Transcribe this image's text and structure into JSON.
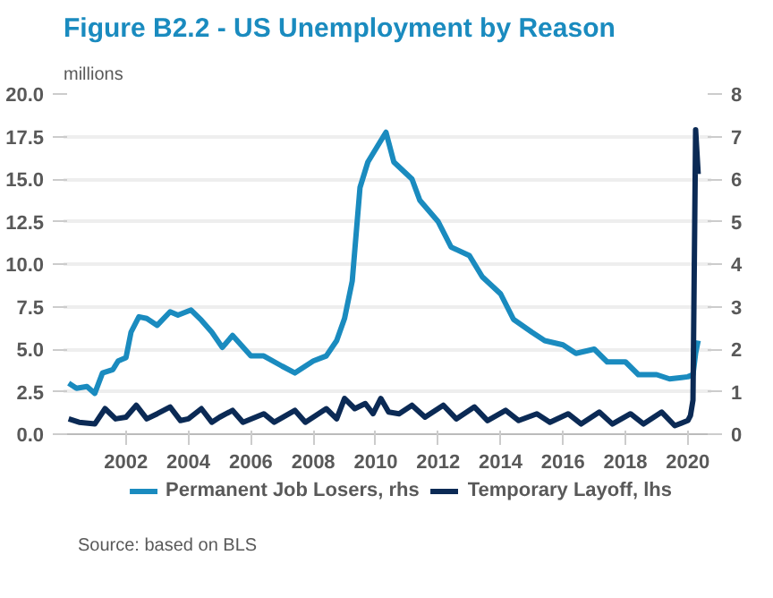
{
  "chart_data": {
    "type": "line",
    "title": "Figure B2.2 - US Unemployment by Reason",
    "subtitle": "millions",
    "annotations": [
      "Source: based on BLS"
    ],
    "xlim": [
      "2000-01",
      "2020-10"
    ],
    "xticks": [
      "2002",
      "2004",
      "2006",
      "2008",
      "2010",
      "2012",
      "2014",
      "2016",
      "2018",
      "2020"
    ],
    "ylim": [
      0,
      20
    ],
    "yticks": [
      {
        "value": 0,
        "label": "0.0"
      },
      {
        "value": 2.5,
        "label": "2.5"
      },
      {
        "value": 5,
        "label": "5.0"
      },
      {
        "value": 7.5,
        "label": "7.5"
      },
      {
        "value": 10,
        "label": "10.0"
      },
      {
        "value": 12.5,
        "label": "12.5"
      },
      {
        "value": 15,
        "label": "15.0"
      },
      {
        "value": 17.5,
        "label": "17.5"
      },
      {
        "value": 20,
        "label": "20.0"
      }
    ],
    "y2lim": [
      0,
      8
    ],
    "y2ticks": [
      0,
      1,
      2,
      3,
      4,
      5,
      6,
      7,
      8
    ],
    "grid": "y",
    "legend": "bottom",
    "marker": "none",
    "line_style": "solid",
    "series": [
      {
        "name": "Permanent Job Losers, rhs",
        "color": "#1a8bbf",
        "axis": "y2",
        "x": [
          "2000-03",
          "2000-06",
          "2000-10",
          "2001-01",
          "2001-04",
          "2001-08",
          "2001-10",
          "2002-01",
          "2002-03",
          "2002-06",
          "2002-09",
          "2003-01",
          "2003-06",
          "2003-09",
          "2004-02",
          "2004-06",
          "2004-10",
          "2005-02",
          "2005-06",
          "2006-01",
          "2006-06",
          "2007-01",
          "2007-06",
          "2008-01",
          "2008-06",
          "2008-10",
          "2009-01",
          "2009-04",
          "2009-07",
          "2009-10",
          "2010-03",
          "2010-05",
          "2010-08",
          "2011-03",
          "2011-06",
          "2012-01",
          "2012-06",
          "2013-01",
          "2013-06",
          "2014-01",
          "2014-06",
          "2015-01",
          "2015-06",
          "2016-01",
          "2016-06",
          "2017-01",
          "2017-06",
          "2018-01",
          "2018-06",
          "2019-01",
          "2019-06",
          "2020-01",
          "2020-03",
          "2020-04",
          "2020-05"
        ],
        "values": [
          1.2,
          1.08,
          1.12,
          0.96,
          1.44,
          1.52,
          1.72,
          1.8,
          2.4,
          2.76,
          2.72,
          2.56,
          2.88,
          2.8,
          2.92,
          2.68,
          2.4,
          2.04,
          2.32,
          1.84,
          1.84,
          1.6,
          1.44,
          1.72,
          1.84,
          2.2,
          2.72,
          3.6,
          5.8,
          6.4,
          6.9,
          7.1,
          6.4,
          6.0,
          5.5,
          5.0,
          4.4,
          4.2,
          3.7,
          3.3,
          2.7,
          2.4,
          2.2,
          2.1,
          1.9,
          2.0,
          1.7,
          1.7,
          1.4,
          1.4,
          1.3,
          1.35,
          1.4,
          1.9,
          2.2
        ]
      },
      {
        "name": "Temporary Layoff, lhs",
        "color": "#0b2a55",
        "axis": "y",
        "x": [
          "2000-03",
          "2000-07",
          "2001-01",
          "2001-05",
          "2001-09",
          "2002-01",
          "2002-05",
          "2002-09",
          "2003-01",
          "2003-06",
          "2003-10",
          "2004-01",
          "2004-06",
          "2004-10",
          "2005-01",
          "2005-06",
          "2005-10",
          "2006-06",
          "2006-10",
          "2007-06",
          "2007-10",
          "2008-06",
          "2008-10",
          "2009-01",
          "2009-05",
          "2009-09",
          "2009-12",
          "2010-03",
          "2010-06",
          "2010-10",
          "2011-03",
          "2011-08",
          "2012-03",
          "2012-08",
          "2013-03",
          "2013-08",
          "2014-03",
          "2014-08",
          "2015-03",
          "2015-08",
          "2016-03",
          "2016-08",
          "2017-03",
          "2017-08",
          "2018-03",
          "2018-08",
          "2019-03",
          "2019-08",
          "2020-01",
          "2020-02",
          "2020-03",
          "2020-04",
          "2020-05"
        ],
        "values": [
          0.9,
          0.7,
          0.6,
          1.5,
          0.9,
          1.0,
          1.7,
          0.9,
          1.2,
          1.6,
          0.8,
          0.9,
          1.5,
          0.7,
          1.0,
          1.4,
          0.7,
          1.2,
          0.7,
          1.4,
          0.7,
          1.5,
          0.9,
          2.1,
          1.5,
          1.8,
          1.2,
          2.1,
          1.3,
          1.2,
          1.7,
          1.0,
          1.7,
          0.9,
          1.6,
          0.8,
          1.4,
          0.8,
          1.2,
          0.7,
          1.2,
          0.6,
          1.3,
          0.6,
          1.2,
          0.6,
          1.3,
          0.5,
          0.8,
          1.1,
          2.0,
          17.9,
          15.3
        ]
      }
    ]
  }
}
